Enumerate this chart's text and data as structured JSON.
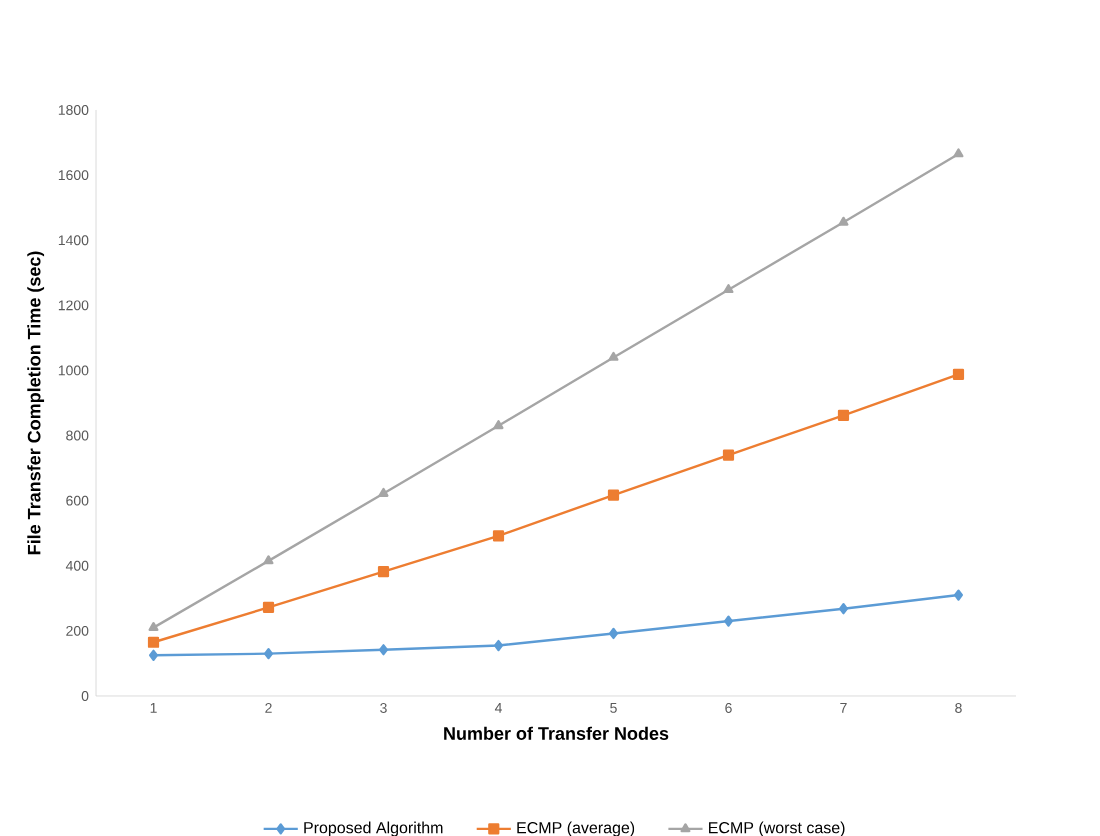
{
  "chart_data": {
    "type": "line",
    "xlabel": "Number of Transfer Nodes",
    "ylabel": "File Transfer Completion Time (sec)",
    "categories": [
      "1",
      "2",
      "3",
      "4",
      "5",
      "6",
      "7",
      "8"
    ],
    "series": [
      {
        "name": "Proposed Algorithm",
        "color": "#5b9bd5",
        "marker": "diamond",
        "values": [
          125,
          130,
          142,
          155,
          192,
          230,
          268,
          310
        ]
      },
      {
        "name": "ECMP (average)",
        "color": "#ed7d31",
        "marker": "square",
        "values": [
          165,
          272,
          382,
          492,
          617,
          740,
          862,
          988
        ]
      },
      {
        "name": "ECMP (worst case)",
        "color": "#a5a5a5",
        "marker": "triangle",
        "values": [
          210,
          415,
          622,
          830,
          1040,
          1248,
          1455,
          1665
        ]
      }
    ],
    "ylim": [
      0,
      1800
    ],
    "yticks": [
      0,
      200,
      400,
      600,
      800,
      1000,
      1200,
      1400,
      1600,
      1800
    ],
    "legend": "bottom",
    "line_style": "solid"
  }
}
